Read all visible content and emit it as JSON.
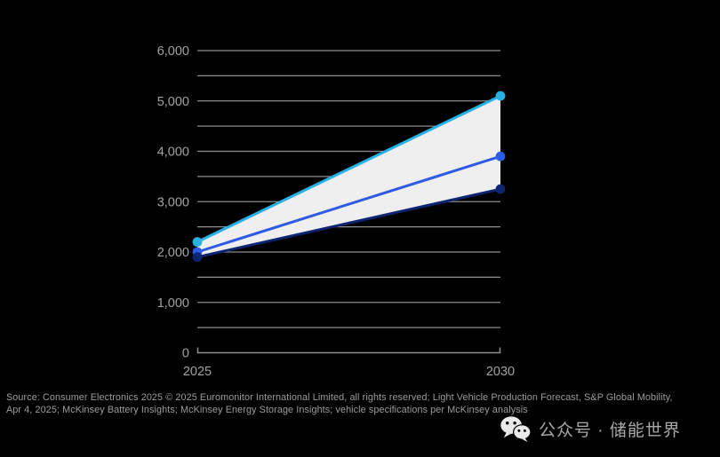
{
  "chart_data": {
    "type": "line",
    "title": "",
    "x_labels": [
      "2025",
      "2030"
    ],
    "series": [
      {
        "name": "upper",
        "color": "#29b1e6",
        "values": [
          2200,
          5100
        ]
      },
      {
        "name": "middle",
        "color": "#2d5be5",
        "values": [
          2000,
          3900
        ]
      },
      {
        "name": "lower",
        "color": "#0e2573",
        "values": [
          1900,
          3250
        ]
      }
    ],
    "band": {
      "upper": 0,
      "lower": 2,
      "fill": "#efefef"
    },
    "ylim": [
      0,
      6000
    ],
    "y_tick_step": 500,
    "y_label_step": 1000,
    "grid": true,
    "legend": "none",
    "background": "#000000",
    "grid_color": "#8e8e8e",
    "axis_color": "#8e8e8e",
    "tick_label_color": "#a2a2a2"
  },
  "footer": {
    "source_line1": "Source: Consumer Electronics 2025 © 2025 Euromonitor International Limited, all rights reserved; Light Vehicle Production Forecast, S&P Global Mobility,",
    "source_line2": "Apr 4, 2025; McKinsey Battery Insights; McKinsey Energy Storage Insights; vehicle specifications per McKinsey analysis",
    "wechat_label": "公众号 · 储能世界"
  }
}
